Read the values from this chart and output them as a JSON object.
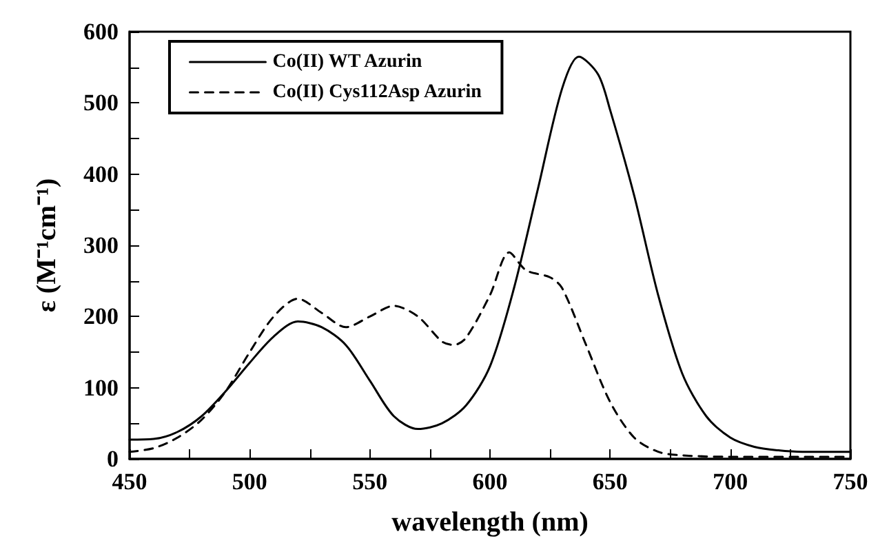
{
  "chart_data": {
    "type": "line",
    "xlabel": "wavelength (nm)",
    "ylabel": "ε (M⁻¹cm⁻¹)",
    "xlim": [
      450,
      750
    ],
    "xticks": [
      450,
      500,
      550,
      600,
      650,
      700,
      750
    ],
    "ylim": [
      0,
      600
    ],
    "yticks": [
      0,
      100,
      200,
      300,
      400,
      500,
      600
    ],
    "grid": false,
    "legend": "top left",
    "marker": "none",
    "series": [
      {
        "name": "Co(II) WT Azurin",
        "color": "#000000",
        "line_style": "solid",
        "x": [
          450,
          460,
          470,
          480,
          490,
          500,
          510,
          520,
          530,
          540,
          550,
          560,
          570,
          580,
          590,
          600,
          610,
          620,
          630,
          637,
          645,
          650,
          660,
          670,
          680,
          690,
          700,
          710,
          720,
          730,
          750
        ],
        "values": [
          27,
          28,
          38,
          60,
          95,
          135,
          172,
          193,
          185,
          160,
          110,
          60,
          42,
          50,
          75,
          130,
          240,
          380,
          520,
          565,
          540,
          490,
          370,
          230,
          120,
          60,
          30,
          17,
          12,
          10,
          10
        ]
      },
      {
        "name": "Co(II) Cys112Asp Azurin",
        "color": "#000000",
        "line_style": "dashed",
        "x": [
          450,
          460,
          470,
          480,
          490,
          500,
          510,
          520,
          530,
          540,
          550,
          560,
          570,
          580,
          585,
          590,
          600,
          608,
          615,
          625,
          630,
          640,
          650,
          660,
          670,
          680,
          700,
          750
        ],
        "values": [
          10,
          15,
          30,
          55,
          95,
          150,
          200,
          225,
          205,
          185,
          200,
          215,
          200,
          165,
          160,
          170,
          230,
          290,
          265,
          255,
          240,
          160,
          80,
          30,
          10,
          5,
          3,
          3
        ]
      }
    ]
  }
}
